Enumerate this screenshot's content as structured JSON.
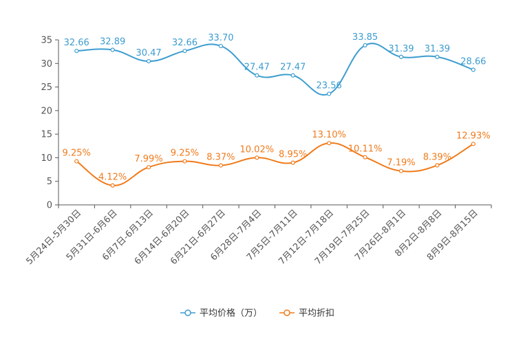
{
  "chart_data": {
    "type": "line",
    "categories": [
      "5月24日-5月30日",
      "5月31日-6月6日",
      "6月7日-6月13日",
      "6月14日-6月20日",
      "6月21日-6月27日",
      "6月28日-7月4日",
      "7月5日-7月11日",
      "7月12日-7月18日",
      "7月19日-7月25日",
      "7月26日-8月1日",
      "8月2日-8月8日",
      "8月9日-8月15日"
    ],
    "series": [
      {
        "name": "平均价格（万）",
        "color": "#3b9ccf",
        "values": [
          32.66,
          32.89,
          30.47,
          32.66,
          33.7,
          27.47,
          27.47,
          23.56,
          33.85,
          31.39,
          31.39,
          28.66
        ],
        "labels": [
          "32.66",
          "32.89",
          "30.47",
          "32.66",
          "33.70",
          "27.47",
          "27.47",
          "23.56",
          "33.85",
          "31.39",
          "31.39",
          "28.66"
        ]
      },
      {
        "name": "平均折扣",
        "color": "#f07a1a",
        "values": [
          9.25,
          4.12,
          7.99,
          9.25,
          8.37,
          10.02,
          8.95,
          13.1,
          10.11,
          7.19,
          8.39,
          12.93
        ],
        "labels": [
          "9.25%",
          "4.12%",
          "7.99%",
          "9.25%",
          "8.37%",
          "10.02%",
          "8.95%",
          "13.10%",
          "10.11%",
          "7.19%",
          "8.39%",
          "12.93%"
        ]
      }
    ],
    "ylim": [
      0,
      35
    ],
    "yticks": [
      "0",
      "5",
      "10",
      "15",
      "20",
      "25",
      "30",
      "35"
    ],
    "title": "",
    "xlabel": "",
    "ylabel": "",
    "legend_position": "bottom-center",
    "grid": false
  }
}
